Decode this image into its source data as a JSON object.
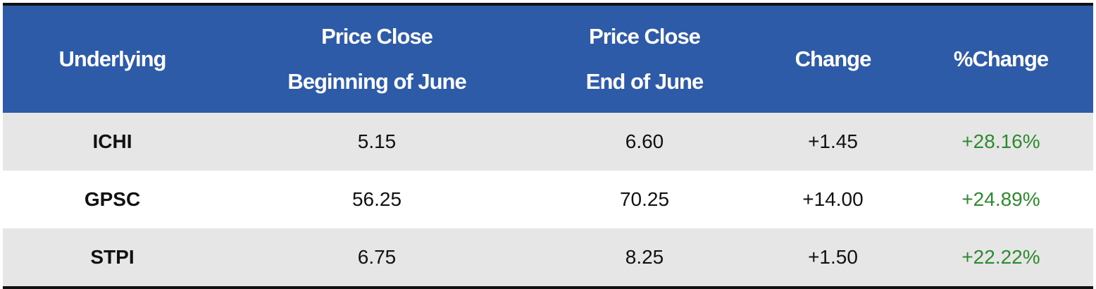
{
  "table": {
    "header": [
      [
        "Underlying"
      ],
      [
        "Price Close",
        "Beginning of June"
      ],
      [
        "Price Close",
        "End of June"
      ],
      [
        "Change"
      ],
      [
        "%Change"
      ]
    ],
    "rows": [
      [
        "ICHI",
        "5.15",
        "6.60",
        "+1.45",
        "+28.16%"
      ],
      [
        "GPSC",
        "56.25",
        "70.25",
        "+14.00",
        "+24.89%"
      ],
      [
        "STPI",
        "6.75",
        "8.25",
        "+1.50",
        "+22.22%"
      ]
    ]
  }
}
